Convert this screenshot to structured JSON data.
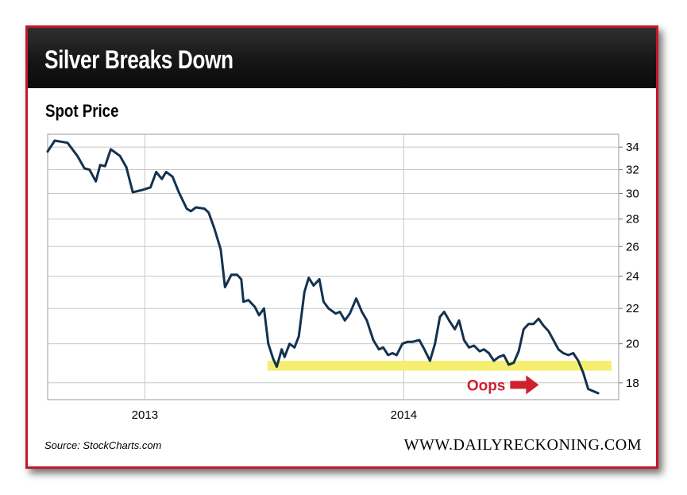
{
  "header": {
    "title": "Silver Breaks Down"
  },
  "footer": {
    "source": "Source: StockCharts.com",
    "brand": "WWW.DAILYRECKONING.COM"
  },
  "colors": {
    "frame": "#c0192c",
    "line": "#14324f",
    "support_band": "#f5ec5e",
    "annotation": "#d0202e"
  },
  "chart_data": {
    "type": "line",
    "title": "Spot Price",
    "y_scale": "log",
    "ylim": [
      17.2,
      35.2
    ],
    "x_range": [
      "2012-08-17",
      "2014-10-31"
    ],
    "y_ticks": [
      18,
      20,
      22,
      24,
      26,
      28,
      30,
      32,
      34
    ],
    "x_ticks": [
      {
        "label": "2013",
        "x": "2013-01-01"
      },
      {
        "label": "2014",
        "x": "2014-01-01"
      }
    ],
    "grid": "vertical and horizontal",
    "support_band": [
      18.6,
      19.1
    ],
    "annotation": {
      "text": "Oops",
      "icon": "right-arrow-icon",
      "points_at": "2014-09-20"
    },
    "series": [
      {
        "points": [
          [
            "2012-08-17",
            33.6
          ],
          [
            "2012-08-27",
            34.6
          ],
          [
            "2012-09-14",
            34.4
          ],
          [
            "2012-09-28",
            33.2
          ],
          [
            "2012-10-08",
            32.1
          ],
          [
            "2012-10-15",
            32.0
          ],
          [
            "2012-10-24",
            31.0
          ],
          [
            "2012-10-30",
            32.4
          ],
          [
            "2012-11-06",
            32.3
          ],
          [
            "2012-11-14",
            33.8
          ],
          [
            "2012-11-27",
            33.2
          ],
          [
            "2012-12-06",
            32.2
          ],
          [
            "2012-12-15",
            30.1
          ],
          [
            "2012-12-29",
            30.3
          ],
          [
            "2013-01-09",
            30.5
          ],
          [
            "2013-01-17",
            31.8
          ],
          [
            "2013-01-25",
            31.2
          ],
          [
            "2013-01-31",
            31.8
          ],
          [
            "2013-02-09",
            31.4
          ],
          [
            "2013-02-18",
            30.1
          ],
          [
            "2013-03-01",
            28.8
          ],
          [
            "2013-03-07",
            28.6
          ],
          [
            "2013-03-14",
            28.9
          ],
          [
            "2013-03-26",
            28.8
          ],
          [
            "2013-04-01",
            28.5
          ],
          [
            "2013-04-09",
            27.3
          ],
          [
            "2013-04-18",
            25.8
          ],
          [
            "2013-04-24",
            23.3
          ],
          [
            "2013-05-03",
            24.1
          ],
          [
            "2013-05-11",
            24.1
          ],
          [
            "2013-05-17",
            23.8
          ],
          [
            "2013-05-20",
            22.4
          ],
          [
            "2013-05-27",
            22.5
          ],
          [
            "2013-06-05",
            22.1
          ],
          [
            "2013-06-11",
            21.6
          ],
          [
            "2013-06-18",
            22.0
          ],
          [
            "2013-06-24",
            20.0
          ],
          [
            "2013-07-01",
            19.2
          ],
          [
            "2013-07-06",
            18.8
          ],
          [
            "2013-07-13",
            19.7
          ],
          [
            "2013-07-17",
            19.3
          ],
          [
            "2013-07-24",
            20.0
          ],
          [
            "2013-07-31",
            19.8
          ],
          [
            "2013-08-06",
            20.4
          ],
          [
            "2013-08-14",
            23.0
          ],
          [
            "2013-08-20",
            23.9
          ],
          [
            "2013-08-27",
            23.4
          ],
          [
            "2013-09-04",
            23.8
          ],
          [
            "2013-09-10",
            22.4
          ],
          [
            "2013-09-17",
            22.0
          ],
          [
            "2013-09-27",
            21.7
          ],
          [
            "2013-10-03",
            21.8
          ],
          [
            "2013-10-10",
            21.3
          ],
          [
            "2013-10-17",
            21.7
          ],
          [
            "2013-10-26",
            22.6
          ],
          [
            "2013-11-03",
            21.8
          ],
          [
            "2013-11-10",
            21.3
          ],
          [
            "2013-11-19",
            20.2
          ],
          [
            "2013-11-27",
            19.7
          ],
          [
            "2013-12-03",
            19.8
          ],
          [
            "2013-12-10",
            19.4
          ],
          [
            "2013-12-16",
            19.5
          ],
          [
            "2013-12-22",
            19.4
          ],
          [
            "2013-12-30",
            20.0
          ],
          [
            "2014-01-06",
            20.1
          ],
          [
            "2014-01-13",
            20.1
          ],
          [
            "2014-01-23",
            20.2
          ],
          [
            "2014-01-30",
            19.7
          ],
          [
            "2014-02-07",
            19.1
          ],
          [
            "2014-02-14",
            20.0
          ],
          [
            "2014-02-21",
            21.5
          ],
          [
            "2014-02-27",
            21.8
          ],
          [
            "2014-03-06",
            21.3
          ],
          [
            "2014-03-14",
            20.8
          ],
          [
            "2014-03-20",
            21.3
          ],
          [
            "2014-03-27",
            20.2
          ],
          [
            "2014-04-03",
            19.8
          ],
          [
            "2014-04-10",
            19.9
          ],
          [
            "2014-04-18",
            19.6
          ],
          [
            "2014-04-24",
            19.7
          ],
          [
            "2014-05-01",
            19.5
          ],
          [
            "2014-05-08",
            19.1
          ],
          [
            "2014-05-15",
            19.3
          ],
          [
            "2014-05-22",
            19.4
          ],
          [
            "2014-05-29",
            18.9
          ],
          [
            "2014-06-05",
            19.0
          ],
          [
            "2014-06-12",
            19.6
          ],
          [
            "2014-06-19",
            20.8
          ],
          [
            "2014-06-26",
            21.1
          ],
          [
            "2014-07-03",
            21.1
          ],
          [
            "2014-07-10",
            21.4
          ],
          [
            "2014-07-17",
            21.0
          ],
          [
            "2014-07-24",
            20.7
          ],
          [
            "2014-07-31",
            20.2
          ],
          [
            "2014-08-07",
            19.7
          ],
          [
            "2014-08-14",
            19.5
          ],
          [
            "2014-08-21",
            19.4
          ],
          [
            "2014-08-28",
            19.5
          ],
          [
            "2014-09-04",
            19.1
          ],
          [
            "2014-09-11",
            18.5
          ],
          [
            "2014-09-18",
            17.7
          ],
          [
            "2014-09-25",
            17.6
          ],
          [
            "2014-10-02",
            17.5
          ]
        ]
      }
    ]
  }
}
